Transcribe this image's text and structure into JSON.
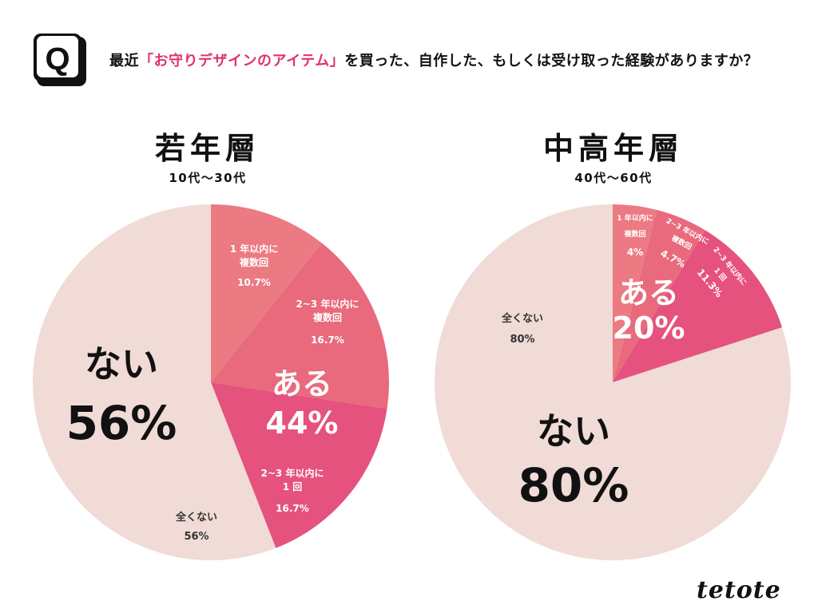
{
  "question": {
    "badge": "Q",
    "text_before": "最近",
    "text_highlight": "「お守りデザインのアイテム」",
    "text_after": "を買った、自作した、もしくは受け取った経験がありますか？"
  },
  "colors": {
    "accent": "#e0336b",
    "none": "#f0dbd6",
    "slice_a": "#ec7a82",
    "slice_b": "#e86a7c",
    "slice_c": "#e5527e"
  },
  "logo": "tetote",
  "chart_data": [
    {
      "type": "pie",
      "title": "若年層",
      "subtitle": "10代〜30代",
      "slices": [
        {
          "label_lines": [
            "1 年以内に",
            "複数回"
          ],
          "value": 10.7,
          "value_text": "10.7%",
          "color": "#ec7a82"
        },
        {
          "label_lines": [
            "2~3 年以内に",
            "複数回"
          ],
          "value": 16.7,
          "value_text": "16.7%",
          "color": "#e86a7c"
        },
        {
          "label_lines": [
            "2~3 年以内に",
            "1 回"
          ],
          "value": 16.7,
          "value_text": "16.7%",
          "color": "#e5527e"
        },
        {
          "label_lines": [
            "全くない"
          ],
          "value": 56,
          "value_text": "56%",
          "color": "#f0dbd6"
        }
      ],
      "yes_label": "ある",
      "yes_value": "44%",
      "no_label": "ない",
      "no_value": "56%"
    },
    {
      "type": "pie",
      "title": "中高年層",
      "subtitle": "40代〜60代",
      "slices": [
        {
          "label_lines": [
            "1 年以内に",
            "複数回"
          ],
          "value": 4,
          "value_text": "4%",
          "color": "#ec7a82"
        },
        {
          "label_lines": [
            "2~3 年以内に",
            "複数回"
          ],
          "value": 4.7,
          "value_text": "4.7%",
          "color": "#e86a7c"
        },
        {
          "label_lines": [
            "2~3 年以内に",
            "1 回"
          ],
          "value": 11.3,
          "value_text": "11.3%",
          "color": "#e5527e"
        },
        {
          "label_lines": [
            "全くない"
          ],
          "value": 80,
          "value_text": "80%",
          "color": "#f0dbd6"
        }
      ],
      "yes_label": "ある",
      "yes_value": "20%",
      "no_label": "ない",
      "no_value": "80%"
    }
  ]
}
